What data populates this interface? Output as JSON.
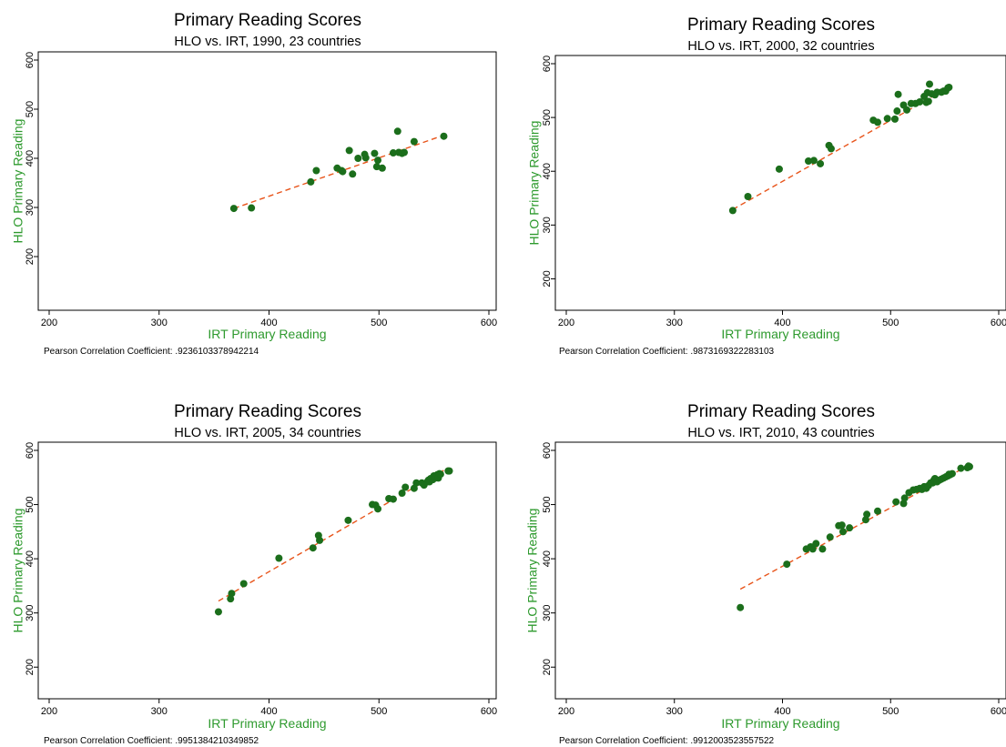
{
  "chart_data": [
    {
      "type": "scatter",
      "title": "Primary Reading Scores",
      "subtitle": "HLO vs. IRT, 1990, 23 countries",
      "xlabel": "IRT Primary Reading",
      "ylabel": "HLO Primary Reading",
      "xlim": [
        200,
        600
      ],
      "ylim": [
        100,
        600
      ],
      "xticks": [
        200,
        300,
        400,
        500,
        600
      ],
      "yticks": [
        200,
        300,
        400,
        500,
        600
      ],
      "footnote": "Pearson Correlation Coefficient: .9236103378942214",
      "points": [
        [
          368,
          298
        ],
        [
          384,
          299
        ],
        [
          438,
          352
        ],
        [
          443,
          375
        ],
        [
          462,
          380
        ],
        [
          466,
          375
        ],
        [
          467,
          373
        ],
        [
          473,
          416
        ],
        [
          476,
          368
        ],
        [
          481,
          400
        ],
        [
          487,
          408
        ],
        [
          488,
          401
        ],
        [
          496,
          410
        ],
        [
          498,
          383
        ],
        [
          499,
          396
        ],
        [
          503,
          380
        ],
        [
          513,
          411
        ],
        [
          517,
          455
        ],
        [
          518,
          412
        ],
        [
          521,
          410
        ],
        [
          523,
          412
        ],
        [
          532,
          434
        ],
        [
          559,
          445
        ]
      ],
      "fit_line": [
        [
          368,
          298
        ],
        [
          559,
          447
        ]
      ],
      "colors": {
        "points": "#1b6e1b",
        "fit_line": "#e8541a",
        "axis_label": "#2e9a2e"
      }
    },
    {
      "type": "scatter",
      "title": "Primary Reading Scores",
      "subtitle": "HLO vs. IRT, 2000, 32 countries",
      "xlabel": "IRT Primary Reading",
      "ylabel": "HLO Primary Reading",
      "xlim": [
        200,
        600
      ],
      "ylim": [
        150,
        600
      ],
      "xticks": [
        200,
        300,
        400,
        500,
        600
      ],
      "yticks": [
        200,
        300,
        400,
        500,
        600
      ],
      "footnote": "Pearson Correlation Coefficient: .9873169322283103",
      "points": [
        [
          354,
          327
        ],
        [
          368,
          353
        ],
        [
          397,
          404
        ],
        [
          424,
          419
        ],
        [
          429,
          420
        ],
        [
          435,
          414
        ],
        [
          443,
          448
        ],
        [
          445,
          442
        ],
        [
          484,
          495
        ],
        [
          488,
          491
        ],
        [
          497,
          498
        ],
        [
          504,
          497
        ],
        [
          506,
          512
        ],
        [
          507,
          543
        ],
        [
          512,
          523
        ],
        [
          515,
          514
        ],
        [
          519,
          526
        ],
        [
          523,
          526
        ],
        [
          527,
          529
        ],
        [
          531,
          539
        ],
        [
          533,
          528
        ],
        [
          534,
          546
        ],
        [
          535,
          530
        ],
        [
          536,
          562
        ],
        [
          538,
          544
        ],
        [
          541,
          542
        ],
        [
          543,
          547
        ],
        [
          547,
          547
        ],
        [
          549,
          549
        ],
        [
          551,
          549
        ],
        [
          553,
          555
        ],
        [
          554,
          556
        ]
      ],
      "fit_line": [
        [
          354,
          329
        ],
        [
          554,
          556
        ]
      ],
      "colors": {
        "points": "#1b6e1b",
        "fit_line": "#e8541a",
        "axis_label": "#2e9a2e"
      }
    },
    {
      "type": "scatter",
      "title": "Primary Reading Scores",
      "subtitle": "HLO vs. IRT, 2005, 34 countries",
      "xlabel": "IRT Primary Reading",
      "ylabel": "HLO Primary Reading",
      "xlim": [
        200,
        600
      ],
      "ylim": [
        150,
        600
      ],
      "xticks": [
        200,
        300,
        400,
        500,
        600
      ],
      "yticks": [
        200,
        300,
        400,
        500,
        600
      ],
      "footnote": "Pearson Correlation Coefficient: .9951384210349852",
      "points": [
        [
          354,
          302
        ],
        [
          365,
          326
        ],
        [
          366,
          336
        ],
        [
          377,
          354
        ],
        [
          409,
          401
        ],
        [
          440,
          420
        ],
        [
          445,
          443
        ],
        [
          446,
          434
        ],
        [
          472,
          471
        ],
        [
          494,
          500
        ],
        [
          497,
          499
        ],
        [
          499,
          492
        ],
        [
          509,
          511
        ],
        [
          513,
          510
        ],
        [
          521,
          521
        ],
        [
          524,
          532
        ],
        [
          532,
          530
        ],
        [
          534,
          540
        ],
        [
          539,
          540
        ],
        [
          541,
          536
        ],
        [
          544,
          542
        ],
        [
          545,
          545
        ],
        [
          546,
          542
        ],
        [
          547,
          548
        ],
        [
          549,
          546
        ],
        [
          550,
          553
        ],
        [
          551,
          549
        ],
        [
          552,
          552
        ],
        [
          553,
          555
        ],
        [
          554,
          549
        ],
        [
          555,
          557
        ],
        [
          556,
          556
        ],
        [
          563,
          562
        ],
        [
          564,
          562
        ]
      ],
      "fit_line": [
        [
          354,
          322
        ],
        [
          563,
          568
        ]
      ],
      "colors": {
        "points": "#1b6e1b",
        "fit_line": "#e8541a",
        "axis_label": "#2e9a2e"
      }
    },
    {
      "type": "scatter",
      "title": "Primary Reading Scores",
      "subtitle": "HLO vs. IRT, 2010, 43 countries",
      "xlabel": "IRT Primary Reading",
      "ylabel": "HLO Primary Reading",
      "xlim": [
        200,
        600
      ],
      "ylim": [
        150,
        600
      ],
      "xticks": [
        200,
        300,
        400,
        500,
        600
      ],
      "yticks": [
        200,
        300,
        400,
        500,
        600
      ],
      "footnote": "Pearson Correlation Coefficient: .9912003523557522",
      "points": [
        [
          361,
          310
        ],
        [
          404,
          390
        ],
        [
          422,
          418
        ],
        [
          426,
          422
        ],
        [
          428,
          418
        ],
        [
          431,
          428
        ],
        [
          437,
          418
        ],
        [
          444,
          440
        ],
        [
          452,
          461
        ],
        [
          455,
          462
        ],
        [
          456,
          450
        ],
        [
          462,
          457
        ],
        [
          477,
          472
        ],
        [
          478,
          482
        ],
        [
          488,
          488
        ],
        [
          505,
          505
        ],
        [
          512,
          502
        ],
        [
          513,
          512
        ],
        [
          517,
          522
        ],
        [
          521,
          527
        ],
        [
          524,
          528
        ],
        [
          527,
          530
        ],
        [
          529,
          528
        ],
        [
          531,
          533
        ],
        [
          533,
          530
        ],
        [
          535,
          535
        ],
        [
          537,
          540
        ],
        [
          539,
          540
        ],
        [
          540,
          545
        ],
        [
          541,
          548
        ],
        [
          543,
          542
        ],
        [
          545,
          545
        ],
        [
          547,
          547
        ],
        [
          549,
          549
        ],
        [
          551,
          551
        ],
        [
          553,
          553
        ],
        [
          554,
          556
        ],
        [
          555,
          555
        ],
        [
          557,
          557
        ],
        [
          565,
          567
        ],
        [
          571,
          568
        ],
        [
          573,
          570
        ],
        [
          572,
          571
        ]
      ],
      "fit_line": [
        [
          361,
          344
        ],
        [
          572,
          572
        ]
      ],
      "colors": {
        "points": "#1b6e1b",
        "fit_line": "#e8541a",
        "axis_label": "#2e9a2e"
      }
    }
  ]
}
